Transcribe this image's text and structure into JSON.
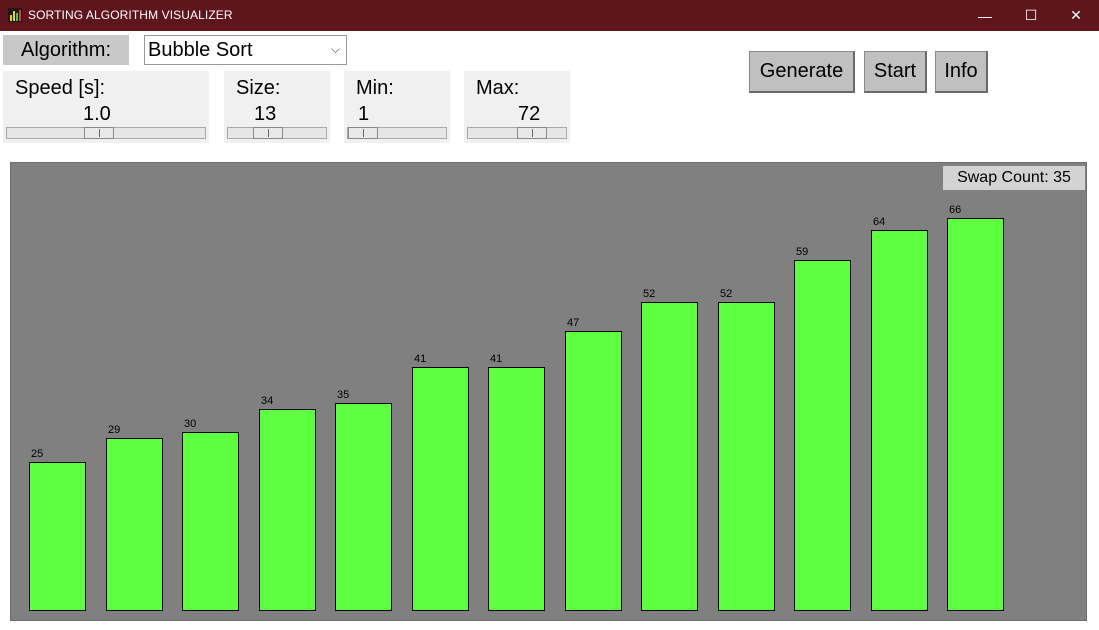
{
  "window": {
    "title": "SORTING ALGORITHM VISUALIZER",
    "minimize_glyph": "—",
    "maximize_glyph": "☐",
    "close_glyph": "✕",
    "titlebar_color": "#5f151c"
  },
  "controls": {
    "algorithm_label": "Algorithm:",
    "algorithm_selected": "Bubble Sort",
    "chevron": "⌵",
    "speed": {
      "label": "Speed [s]:",
      "value": "1.0",
      "slider_fraction": 0.46
    },
    "size": {
      "label": "Size:",
      "value": "13",
      "slider_fraction": 0.37
    },
    "min": {
      "label": "Min:",
      "value": "1",
      "slider_fraction": 0.0
    },
    "max": {
      "label": "Max:",
      "value": "72",
      "slider_fraction": 0.72
    },
    "buttons": {
      "generate": "Generate",
      "start": "Start",
      "info": "Info"
    }
  },
  "visualizer": {
    "swap_count_text": "Swap Count: 35",
    "bar_color": "#5dff40",
    "background_color": "#808080",
    "values": [
      25,
      29,
      30,
      34,
      35,
      41,
      41,
      47,
      52,
      52,
      59,
      64,
      66
    ]
  }
}
